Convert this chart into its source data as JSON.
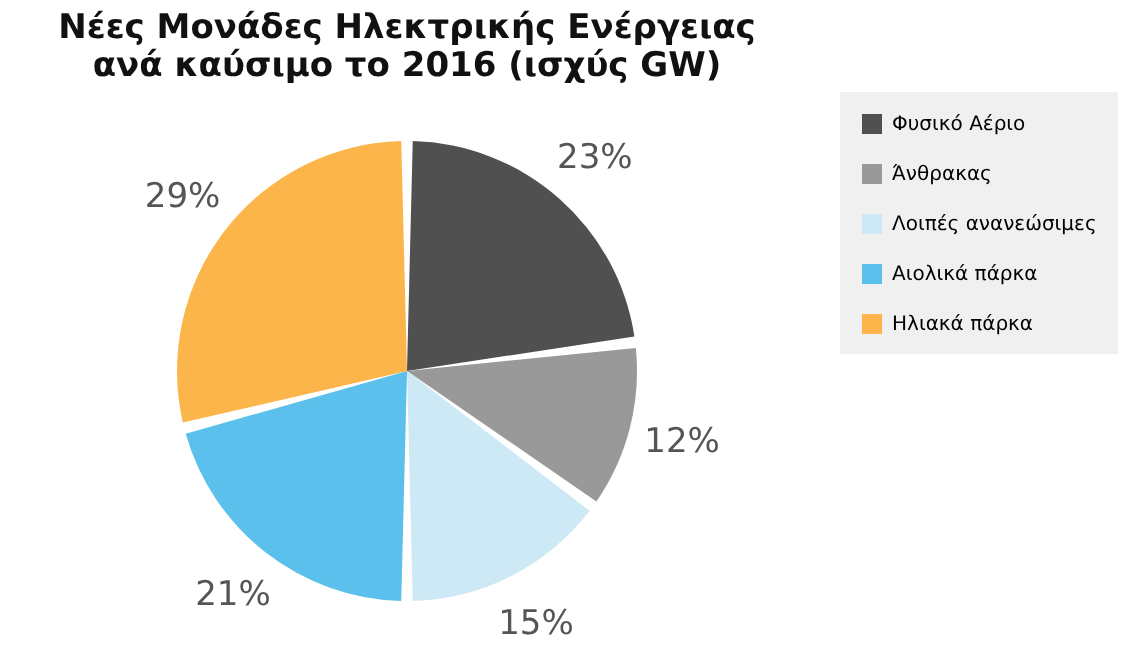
{
  "chart_data": {
    "type": "pie",
    "title": [
      "Νέες Μονάδες  Ηλεκτρικής Ενέργειας",
      "ανά καύσιμο το 2016 (ισχύς GW)"
    ],
    "categories": [
      "Φυσικό Αέριο",
      "Άνθρακας",
      "Λοιπές ανανεώσιμες",
      "Αιολικά πάρκα",
      "Ηλιακά πάρκα"
    ],
    "values": [
      23,
      12,
      15,
      21,
      29
    ],
    "colors": [
      "#505050",
      "#999999",
      "#cde9f6",
      "#5bc0eb",
      "#fbb54a"
    ],
    "value_labels": [
      "23%",
      "12%",
      "15%",
      "21%",
      "29%"
    ],
    "legend": "right"
  }
}
